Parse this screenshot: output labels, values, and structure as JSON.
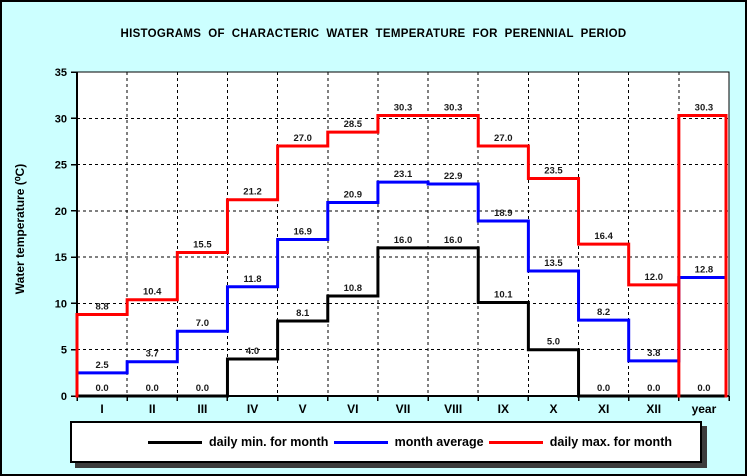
{
  "colors": {
    "background": "#CCFFFF",
    "plot_background": "#FFFFFF",
    "axis": "#000000",
    "legend_shadow": "#3C3C3C"
  },
  "chart_data": {
    "type": "line",
    "subtype": "step-histogram",
    "title": "HISTOGRAMS  OF  CHARACTERIC  WATER  TEMPERATURE  FOR  PERENNIAL  PERIOD",
    "xlabel": "",
    "ylabel": "Water temperature (⁰C)",
    "ylim": [
      0,
      35
    ],
    "yticks": [
      0,
      5,
      10,
      15,
      20,
      25,
      30,
      35
    ],
    "grid": true,
    "grid_style": "dashed",
    "legend_position": "bottom",
    "categories": [
      "I",
      "II",
      "III",
      "IV",
      "V",
      "VI",
      "VII",
      "VIII",
      "IX",
      "X",
      "XI",
      "XII",
      "year"
    ],
    "series": [
      {
        "name": "daily min. for month",
        "color": "#000000",
        "year_bar": false,
        "values": [
          0.0,
          0.0,
          0.0,
          4.0,
          8.1,
          10.8,
          16.0,
          16.0,
          10.1,
          5.0,
          0.0,
          0.0,
          0.0
        ]
      },
      {
        "name": "month average",
        "color": "#0000FF",
        "year_bar": false,
        "values": [
          2.5,
          3.7,
          7.0,
          11.8,
          16.9,
          20.9,
          23.1,
          22.9,
          18.9,
          13.5,
          8.2,
          3.8,
          12.8
        ]
      },
      {
        "name": "daily max. for month",
        "color": "#FF0000",
        "year_bar": true,
        "values": [
          8.8,
          10.4,
          15.5,
          21.2,
          27.0,
          28.5,
          30.3,
          30.3,
          27.0,
          23.5,
          16.4,
          12.0,
          30.3
        ]
      }
    ]
  }
}
